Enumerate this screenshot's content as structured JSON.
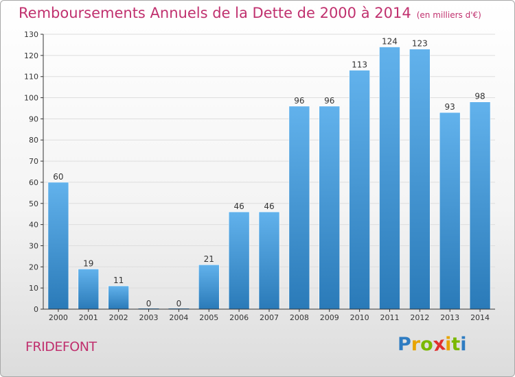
{
  "header": {
    "title": "Remboursements Annuels de la Dette de 2000 à 2014",
    "unit": "(en milliers d'€)"
  },
  "footer": {
    "commune": "FRIDEFONT",
    "logo_letters": [
      "P",
      "r",
      "o",
      "x",
      "i",
      "t",
      "i"
    ],
    "logo_colors": [
      "#2e7cc2",
      "#e8a400",
      "#7ab800",
      "#e0302e",
      "#e8a400",
      "#7ab800",
      "#2e7cc2"
    ]
  },
  "colors": {
    "bar_top": "#62b2ec",
    "bar_bottom": "#2a7ab8",
    "grid": "#dddddd",
    "axis": "#333333",
    "title": "#c0306e"
  },
  "chart_data": {
    "type": "bar",
    "title": "Remboursements Annuels de la Dette de 2000 à 2014",
    "subtitle": "(en milliers d'€)",
    "xlabel": "",
    "ylabel": "",
    "categories": [
      "2000",
      "2001",
      "2002",
      "2003",
      "2004",
      "2005",
      "2006",
      "2007",
      "2008",
      "2009",
      "2010",
      "2011",
      "2012",
      "2013",
      "2014"
    ],
    "values": [
      60,
      19,
      11,
      0,
      0,
      21,
      46,
      46,
      96,
      96,
      113,
      124,
      123,
      93,
      98
    ],
    "ylim": [
      0,
      130
    ],
    "yticks": [
      0,
      10,
      20,
      30,
      40,
      50,
      60,
      70,
      80,
      90,
      100,
      110,
      120,
      130
    ],
    "grid": true,
    "data_labels": true
  }
}
